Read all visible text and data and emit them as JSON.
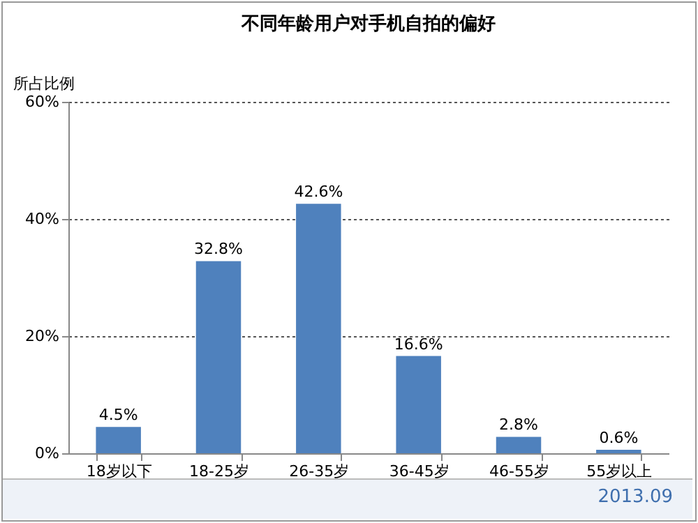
{
  "chart_data": {
    "type": "bar",
    "title": "不同年龄用户对手机自拍的偏好",
    "ylabel": "所占比例",
    "categories": [
      "18岁以下",
      "18-25岁",
      "26-35岁",
      "36-45岁",
      "46-55岁",
      "55岁以上"
    ],
    "values": [
      4.5,
      32.8,
      42.6,
      16.6,
      2.8,
      0.6
    ],
    "value_labels": [
      "4.5%",
      "32.8%",
      "42.6%",
      "16.6%",
      "2.8%",
      "0.6%"
    ],
    "color": "#4f81bd",
    "ylim": [
      0,
      60
    ],
    "yticks": [
      {
        "value": 0,
        "label": "0%"
      },
      {
        "value": 20,
        "label": "20%"
      },
      {
        "value": 40,
        "label": "40%"
      },
      {
        "value": 60,
        "label": "60%"
      }
    ],
    "grid": "y",
    "annotations": [
      "2013.09"
    ]
  }
}
